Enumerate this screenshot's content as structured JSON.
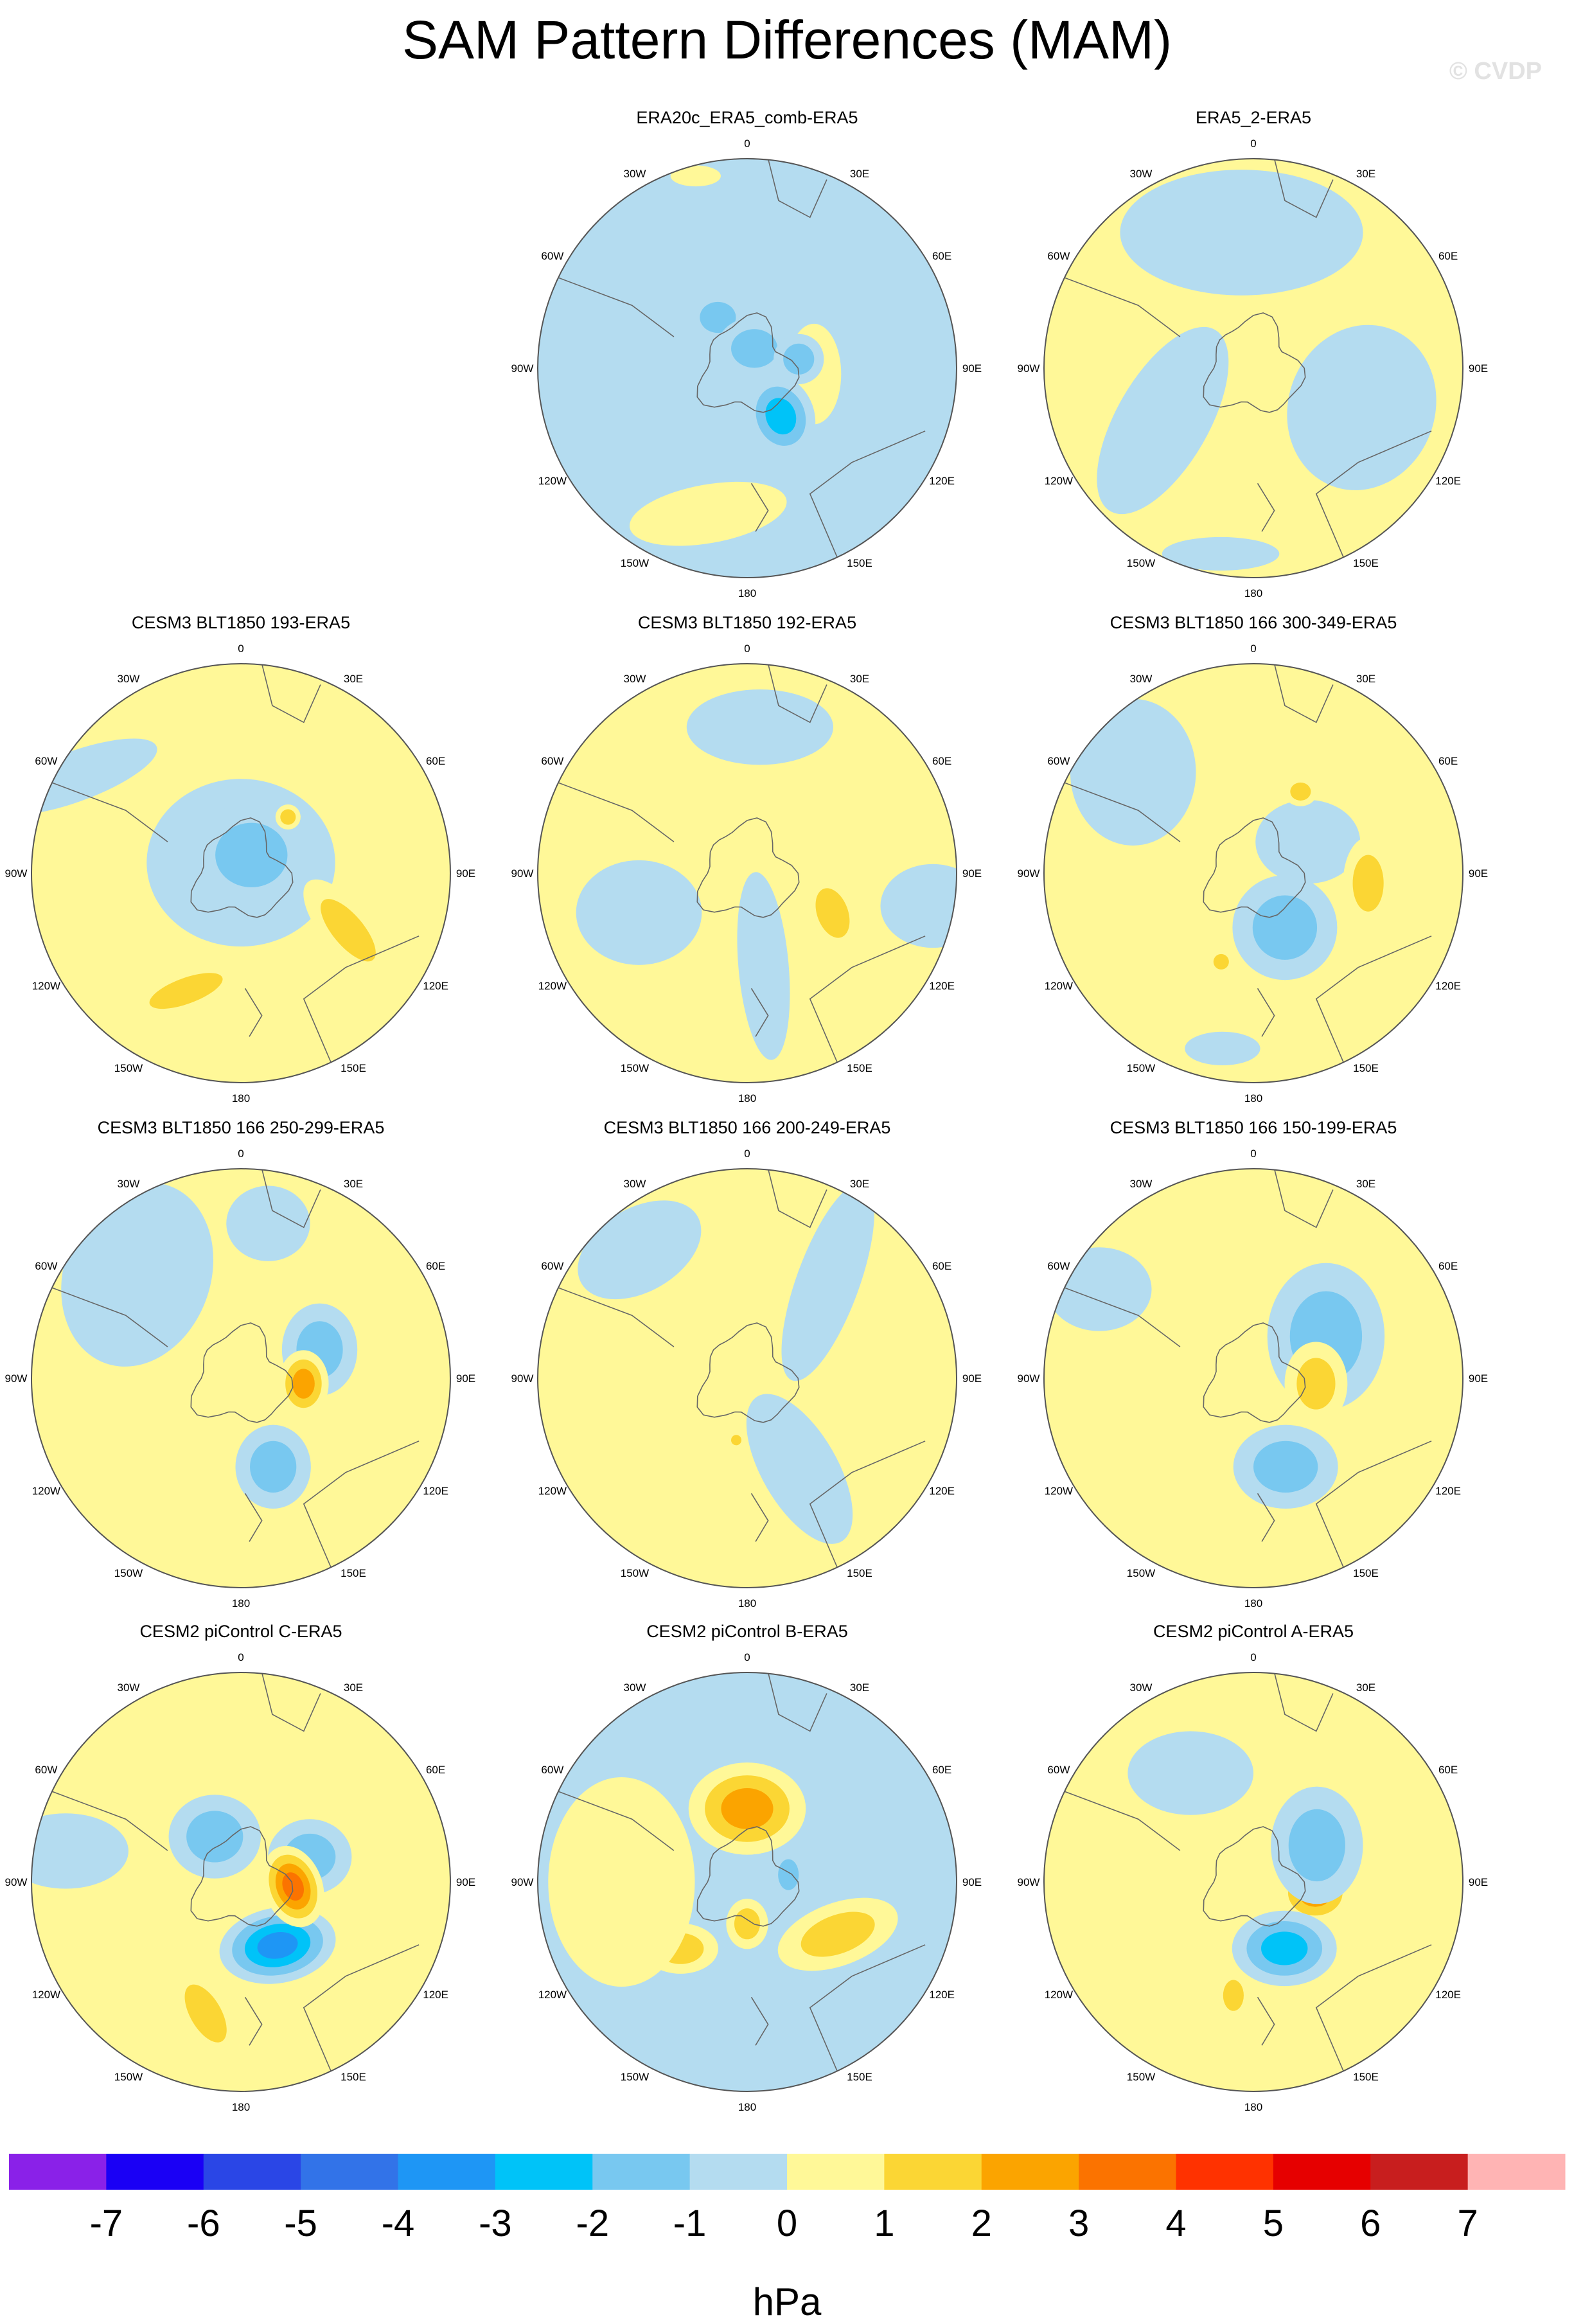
{
  "title": "SAM Pattern Differences (MAM)",
  "watermark": "© CVDP",
  "lon_labels": [
    "0",
    "30E",
    "60E",
    "90E",
    "120E",
    "150E",
    "180",
    "150W",
    "120W",
    "90W",
    "60W",
    "30W"
  ],
  "colors": {
    "bg_neg": "#b4dcf0",
    "bg_pos": "#fff898",
    "outline": "#555555",
    "coast": "#666666"
  },
  "panels": [
    {
      "title": "ERA20c_ERA5_comb-ERA5",
      "bg": "neg",
      "blobs": [
        {
          "type": "pos",
          "a": 95,
          "r": 0.32,
          "rx": 0.13,
          "ry": 0.24,
          "rot": 0,
          "levels": 1,
          "peak": 1
        },
        {
          "type": "neg",
          "a": 145,
          "r": 0.28,
          "rx": 0.16,
          "ry": 0.2,
          "rot": -20,
          "levels": 3,
          "peak": -3
        },
        {
          "type": "neg",
          "a": 330,
          "r": 0.28,
          "rx": 0.14,
          "ry": 0.12,
          "rot": 0,
          "levels": 2,
          "peak": -2
        },
        {
          "type": "neg",
          "a": 20,
          "r": 0.1,
          "rx": 0.18,
          "ry": 0.15,
          "rot": 0,
          "levels": 2,
          "peak": -2
        },
        {
          "type": "neg",
          "a": 80,
          "r": 0.25,
          "rx": 0.12,
          "ry": 0.12,
          "rot": 0,
          "levels": 2,
          "peak": -2
        },
        {
          "type": "pos",
          "a": 195,
          "r": 0.72,
          "rx": 0.38,
          "ry": 0.14,
          "rot": -10,
          "levels": 1,
          "peak": 1
        },
        {
          "type": "pos",
          "a": 345,
          "r": 0.95,
          "rx": 0.12,
          "ry": 0.05,
          "rot": 0,
          "levels": 1,
          "peak": 1
        }
      ]
    },
    {
      "title": "ERA5_2-ERA5",
      "bg": "pos",
      "blobs": [
        {
          "type": "neg",
          "a": 355,
          "r": 0.65,
          "rx": 0.58,
          "ry": 0.3,
          "rot": 0,
          "levels": 1,
          "peak": -1
        },
        {
          "type": "neg",
          "a": 110,
          "r": 0.55,
          "rx": 0.35,
          "ry": 0.4,
          "rot": 20,
          "levels": 1,
          "peak": -1
        },
        {
          "type": "neg",
          "a": 240,
          "r": 0.5,
          "rx": 0.22,
          "ry": 0.5,
          "rot": 30,
          "levels": 1,
          "peak": -1
        },
        {
          "type": "neg",
          "a": 190,
          "r": 0.9,
          "rx": 0.28,
          "ry": 0.08,
          "rot": 0,
          "levels": 1,
          "peak": -1
        }
      ]
    },
    {
      "title": "CESM3 BLT1850 193-ERA5",
      "bg": "pos",
      "blobs": [
        {
          "type": "neg",
          "a": 0,
          "r": 0.05,
          "rx": 0.45,
          "ry": 0.4,
          "rot": 0,
          "levels": 1,
          "peak": -1
        },
        {
          "type": "neg",
          "a": 30,
          "r": 0.1,
          "rx": 0.28,
          "ry": 0.25,
          "rot": 0,
          "levels": 2,
          "peak": -2
        },
        {
          "type": "neg",
          "a": 300,
          "r": 0.92,
          "rx": 0.42,
          "ry": 0.12,
          "rot": -20,
          "levels": 1,
          "peak": -1
        },
        {
          "type": "pos",
          "a": 118,
          "r": 0.58,
          "rx": 0.12,
          "ry": 0.3,
          "rot": -40,
          "levels": 2,
          "peak": 2
        },
        {
          "type": "pos",
          "a": 205,
          "r": 0.62,
          "rx": 0.3,
          "ry": 0.1,
          "rot": -20,
          "levels": 2,
          "peak": 2
        },
        {
          "type": "pos",
          "a": 40,
          "r": 0.35,
          "rx": 0.06,
          "ry": 0.06,
          "rot": 0,
          "levels": 2,
          "peak": 2
        }
      ]
    },
    {
      "title": "CESM3 BLT1850 192-ERA5",
      "bg": "pos",
      "blobs": [
        {
          "type": "neg",
          "a": 170,
          "r": 0.45,
          "rx": 0.12,
          "ry": 0.45,
          "rot": -5,
          "levels": 1,
          "peak": -1
        },
        {
          "type": "neg",
          "a": 250,
          "r": 0.55,
          "rx": 0.3,
          "ry": 0.25,
          "rot": 0,
          "levels": 1,
          "peak": -1
        },
        {
          "type": "neg",
          "a": 5,
          "r": 0.7,
          "rx": 0.35,
          "ry": 0.18,
          "rot": 0,
          "levels": 1,
          "peak": -1
        },
        {
          "type": "neg",
          "a": 100,
          "r": 0.9,
          "rx": 0.25,
          "ry": 0.2,
          "rot": 0,
          "levels": 1,
          "peak": -1
        },
        {
          "type": "pos",
          "a": 115,
          "r": 0.45,
          "rx": 0.12,
          "ry": 0.2,
          "rot": -20,
          "levels": 2,
          "peak": 2
        }
      ]
    },
    {
      "title": "CESM3 BLT1850 166 300-349-ERA5",
      "bg": "pos",
      "blobs": [
        {
          "type": "neg",
          "a": 150,
          "r": 0.3,
          "rx": 0.25,
          "ry": 0.25,
          "rot": 0,
          "levels": 2,
          "peak": -2
        },
        {
          "type": "neg",
          "a": 310,
          "r": 0.75,
          "rx": 0.3,
          "ry": 0.35,
          "rot": 0,
          "levels": 1,
          "peak": -1
        },
        {
          "type": "neg",
          "a": 60,
          "r": 0.3,
          "rx": 0.25,
          "ry": 0.2,
          "rot": 0,
          "levels": 1,
          "peak": -1
        },
        {
          "type": "neg",
          "a": 190,
          "r": 0.85,
          "rx": 0.18,
          "ry": 0.08,
          "rot": 0,
          "levels": 1,
          "peak": -1
        },
        {
          "type": "pos",
          "a": 95,
          "r": 0.55,
          "rx": 0.12,
          "ry": 0.22,
          "rot": 0,
          "levels": 2,
          "peak": 2
        },
        {
          "type": "pos",
          "a": 30,
          "r": 0.45,
          "rx": 0.08,
          "ry": 0.07,
          "rot": 0,
          "levels": 2,
          "peak": 2
        },
        {
          "type": "pos",
          "a": 200,
          "r": 0.45,
          "rx": 0.06,
          "ry": 0.06,
          "rot": 0,
          "levels": 2,
          "peak": 2
        }
      ]
    },
    {
      "title": "CESM3 BLT1850 166 250-299-ERA5",
      "bg": "pos",
      "blobs": [
        {
          "type": "neg",
          "a": 315,
          "r": 0.7,
          "rx": 0.35,
          "ry": 0.45,
          "rot": 20,
          "levels": 1,
          "peak": -1
        },
        {
          "type": "neg",
          "a": 70,
          "r": 0.4,
          "rx": 0.18,
          "ry": 0.22,
          "rot": 0,
          "levels": 2,
          "peak": -2
        },
        {
          "type": "neg",
          "a": 160,
          "r": 0.45,
          "rx": 0.18,
          "ry": 0.2,
          "rot": 0,
          "levels": 2,
          "peak": -2
        },
        {
          "type": "neg",
          "a": 10,
          "r": 0.75,
          "rx": 0.2,
          "ry": 0.18,
          "rot": 0,
          "levels": 1,
          "peak": -1
        },
        {
          "type": "pos",
          "a": 95,
          "r": 0.3,
          "rx": 0.12,
          "ry": 0.16,
          "rot": 0,
          "levels": 3,
          "peak": 3
        }
      ]
    },
    {
      "title": "CESM3 BLT1850 166 200-249-ERA5",
      "bg": "pos",
      "blobs": [
        {
          "type": "neg",
          "a": 320,
          "r": 0.8,
          "rx": 0.32,
          "ry": 0.2,
          "rot": -30,
          "levels": 1,
          "peak": -1
        },
        {
          "type": "neg",
          "a": 150,
          "r": 0.5,
          "rx": 0.18,
          "ry": 0.4,
          "rot": -30,
          "levels": 1,
          "peak": -1
        },
        {
          "type": "neg",
          "a": 40,
          "r": 0.6,
          "rx": 0.15,
          "ry": 0.5,
          "rot": 20,
          "levels": 1,
          "peak": -1
        },
        {
          "type": "pos",
          "a": 190,
          "r": 0.3,
          "rx": 0.04,
          "ry": 0.04,
          "rot": 0,
          "levels": 2,
          "peak": 2
        }
      ]
    },
    {
      "title": "CESM3 BLT1850 166 150-199-ERA5",
      "bg": "pos",
      "blobs": [
        {
          "type": "neg",
          "a": 60,
          "r": 0.4,
          "rx": 0.28,
          "ry": 0.35,
          "rot": 0,
          "levels": 2,
          "peak": -2
        },
        {
          "type": "neg",
          "a": 160,
          "r": 0.45,
          "rx": 0.25,
          "ry": 0.2,
          "rot": 0,
          "levels": 2,
          "peak": -2
        },
        {
          "type": "neg",
          "a": 300,
          "r": 0.85,
          "rx": 0.25,
          "ry": 0.2,
          "rot": 0,
          "levels": 1,
          "peak": -1
        },
        {
          "type": "pos",
          "a": 95,
          "r": 0.3,
          "rx": 0.15,
          "ry": 0.2,
          "rot": 0,
          "levels": 2,
          "peak": 2
        }
      ]
    },
    {
      "title": "CESM2 piControl C-ERA5",
      "bg": "pos",
      "blobs": [
        {
          "type": "neg",
          "a": 150,
          "r": 0.35,
          "rx": 0.28,
          "ry": 0.18,
          "rot": -10,
          "levels": 4,
          "peak": -4
        },
        {
          "type": "neg",
          "a": 70,
          "r": 0.35,
          "rx": 0.2,
          "ry": 0.18,
          "rot": 0,
          "levels": 2,
          "peak": -2
        },
        {
          "type": "neg",
          "a": 330,
          "r": 0.25,
          "rx": 0.22,
          "ry": 0.2,
          "rot": 0,
          "levels": 2,
          "peak": -2
        },
        {
          "type": "neg",
          "a": 280,
          "r": 0.85,
          "rx": 0.3,
          "ry": 0.18,
          "rot": 0,
          "levels": 1,
          "peak": -1
        },
        {
          "type": "pos",
          "a": 95,
          "r": 0.25,
          "rx": 0.14,
          "ry": 0.2,
          "rot": -20,
          "levels": 4,
          "peak": 4
        },
        {
          "type": "pos",
          "a": 195,
          "r": 0.65,
          "rx": 0.12,
          "ry": 0.25,
          "rot": -30,
          "levels": 2,
          "peak": 2
        }
      ]
    },
    {
      "title": "CESM2 piControl B-ERA5",
      "bg": "neg",
      "blobs": [
        {
          "type": "pos",
          "a": 0,
          "r": 0.35,
          "rx": 0.28,
          "ry": 0.22,
          "rot": 0,
          "levels": 3,
          "peak": 3
        },
        {
          "type": "pos",
          "a": 120,
          "r": 0.5,
          "rx": 0.3,
          "ry": 0.15,
          "rot": -20,
          "levels": 2,
          "peak": 2
        },
        {
          "type": "pos",
          "a": 225,
          "r": 0.45,
          "rx": 0.18,
          "ry": 0.12,
          "rot": 0,
          "levels": 2,
          "peak": 2
        },
        {
          "type": "pos",
          "a": 180,
          "r": 0.2,
          "rx": 0.1,
          "ry": 0.12,
          "rot": 0,
          "levels": 2,
          "peak": 2
        },
        {
          "type": "pos",
          "a": 270,
          "r": 0.6,
          "rx": 0.35,
          "ry": 0.5,
          "rot": 0,
          "levels": 1,
          "peak": 1
        },
        {
          "type": "neg",
          "a": 80,
          "r": 0.2,
          "rx": 0.08,
          "ry": 0.12,
          "rot": 0,
          "levels": 2,
          "peak": -2
        }
      ]
    },
    {
      "title": "CESM2 piControl A-ERA5",
      "bg": "pos",
      "blobs": [
        {
          "type": "pos",
          "a": 100,
          "r": 0.3,
          "rx": 0.18,
          "ry": 0.15,
          "rot": 0,
          "levels": 3,
          "peak": 3
        },
        {
          "type": "neg",
          "a": 155,
          "r": 0.35,
          "rx": 0.25,
          "ry": 0.18,
          "rot": 0,
          "levels": 3,
          "peak": -3
        },
        {
          "type": "neg",
          "a": 60,
          "r": 0.35,
          "rx": 0.22,
          "ry": 0.28,
          "rot": 0,
          "levels": 2,
          "peak": -2
        },
        {
          "type": "neg",
          "a": 330,
          "r": 0.6,
          "rx": 0.3,
          "ry": 0.2,
          "rot": 0,
          "levels": 1,
          "peak": -1
        },
        {
          "type": "pos",
          "a": 190,
          "r": 0.55,
          "rx": 0.08,
          "ry": 0.12,
          "rot": 0,
          "levels": 2,
          "peak": 2
        }
      ]
    }
  ],
  "colorbar": {
    "unit": "hPa",
    "tick_labels": [
      "-7",
      "-6",
      "-5",
      "-4",
      "-3",
      "-2",
      "-1",
      "0",
      "1",
      "2",
      "3",
      "4",
      "5",
      "6",
      "7"
    ],
    "colors": [
      "#8a21e8",
      "#1a00f5",
      "#2a46e6",
      "#3273e8",
      "#1e96f5",
      "#00c3f8",
      "#78c8f0",
      "#b4dcf0",
      "#fff898",
      "#fbd634",
      "#fba400",
      "#fb7300",
      "#ff3200",
      "#e60000",
      "#c81e1e",
      "#ffb4b4"
    ]
  }
}
